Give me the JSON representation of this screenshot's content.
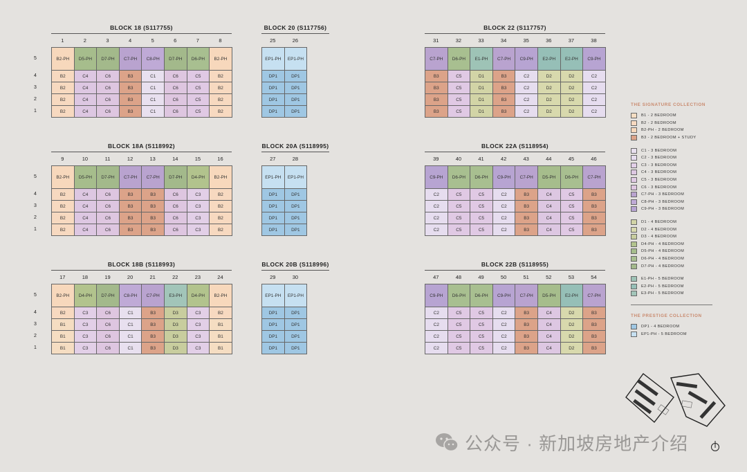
{
  "colors": {
    "B1": "#f5ddc2",
    "B2": "#f7d9c0",
    "B2-PH": "#f7d8bc",
    "B3": "#dca389",
    "C1": "#e8e0ef",
    "C2": "#e6ddef",
    "C3": "#e2cfe7",
    "C4": "#ddc7e2",
    "C5": "#e0c9e4",
    "C6": "#dec6e0",
    "C7-PH": "#b9a3cf",
    "C8-PH": "#bfaad6",
    "C9-PH": "#b7a4d2",
    "D1": "#d2d4a6",
    "D2": "#d8d9ad",
    "D3": "#c8cd9e",
    "D4-PH": "#b2c38d",
    "D5-PH": "#a6bd8c",
    "D6-PH": "#a8bf90",
    "D7-PH": "#a3b98b",
    "E1-PH": "#9ec3b6",
    "E2-PH": "#96bfb7",
    "E3-PH": "#a2c5b9",
    "DP1": "#9fc7e3",
    "EP1-PH": "#c6e0f1"
  },
  "blocks": [
    {
      "id": "b18",
      "title": "BLOCK 18 (S117755)",
      "stacks": [
        "1",
        "2",
        "3",
        "4",
        "5",
        "6",
        "7",
        "8"
      ],
      "rows": [
        {
          "floor": "5",
          "units": [
            "B2-PH",
            "D5-PH",
            "D7-PH",
            "C7-PH",
            "C8-PH",
            "D7-PH",
            "D6-PH",
            "B2-PH"
          ]
        },
        {
          "floor": "4",
          "units": [
            "B2",
            "C4",
            "C6",
            "B3",
            "C1",
            "C6",
            "C5",
            "B2"
          ]
        },
        {
          "floor": "3",
          "units": [
            "B2",
            "C4",
            "C6",
            "B3",
            "C1",
            "C6",
            "C5",
            "B2"
          ]
        },
        {
          "floor": "2",
          "units": [
            "B2",
            "C4",
            "C6",
            "B3",
            "C1",
            "C6",
            "C5",
            "B2"
          ]
        },
        {
          "floor": "1",
          "units": [
            "B2",
            "C4",
            "C6",
            "B3",
            "C1",
            "C6",
            "C5",
            "B2"
          ]
        }
      ]
    },
    {
      "id": "b20",
      "title": "BLOCK 20 (S117756)",
      "stacks": [
        "25",
        "26"
      ],
      "rows": [
        {
          "floor": "",
          "units": [
            "EP1-PH",
            "EP1-PH"
          ]
        },
        {
          "floor": "",
          "units": [
            "DP1",
            "DP1"
          ]
        },
        {
          "floor": "",
          "units": [
            "DP1",
            "DP1"
          ]
        },
        {
          "floor": "",
          "units": [
            "DP1",
            "DP1"
          ]
        },
        {
          "floor": "",
          "units": [
            "DP1",
            "DP1"
          ]
        }
      ]
    },
    {
      "id": "b22",
      "title": "BLOCK 22 (S117757)",
      "stacks": [
        "31",
        "32",
        "33",
        "34",
        "35",
        "36",
        "37",
        "38"
      ],
      "rows": [
        {
          "floor": "",
          "units": [
            "C7-PH",
            "D6-PH",
            "E1-PH",
            "C7-PH",
            "C9-PH",
            "E2-PH",
            "E2-PH",
            "C9-PH"
          ]
        },
        {
          "floor": "",
          "units": [
            "B3",
            "C5",
            "D1",
            "B3",
            "C2",
            "D2",
            "D2",
            "C2"
          ]
        },
        {
          "floor": "",
          "units": [
            "B3",
            "C5",
            "D1",
            "B3",
            "C2",
            "D2",
            "D2",
            "C2"
          ]
        },
        {
          "floor": "",
          "units": [
            "B3",
            "C5",
            "D1",
            "B3",
            "C2",
            "D2",
            "D2",
            "C2"
          ]
        },
        {
          "floor": "",
          "units": [
            "B3",
            "C5",
            "D1",
            "B3",
            "C2",
            "D2",
            "D2",
            "C2"
          ]
        }
      ]
    },
    {
      "id": "b18a",
      "title": "BLOCK 18A (S118992)",
      "stacks": [
        "9",
        "10",
        "11",
        "12",
        "13",
        "14",
        "15",
        "16"
      ],
      "rows": [
        {
          "floor": "5",
          "units": [
            "B2-PH",
            "D5-PH",
            "D7-PH",
            "C7-PH",
            "C7-PH",
            "D7-PH",
            "D4-PH",
            "B2-PH"
          ]
        },
        {
          "floor": "4",
          "units": [
            "B2",
            "C4",
            "C6",
            "B3",
            "B3",
            "C6",
            "C3",
            "B2"
          ]
        },
        {
          "floor": "3",
          "units": [
            "B2",
            "C4",
            "C6",
            "B3",
            "B3",
            "C6",
            "C3",
            "B2"
          ]
        },
        {
          "floor": "2",
          "units": [
            "B2",
            "C4",
            "C6",
            "B3",
            "B3",
            "C6",
            "C3",
            "B2"
          ]
        },
        {
          "floor": "1",
          "units": [
            "B2",
            "C4",
            "C6",
            "B3",
            "B3",
            "C6",
            "C3",
            "B2"
          ]
        }
      ]
    },
    {
      "id": "b20a",
      "title": "BLOCK 20A (S118995)",
      "stacks": [
        "27",
        "28"
      ],
      "rows": [
        {
          "floor": "",
          "units": [
            "EP1-PH",
            "EP1-PH"
          ]
        },
        {
          "floor": "",
          "units": [
            "DP1",
            "DP1"
          ]
        },
        {
          "floor": "",
          "units": [
            "DP1",
            "DP1"
          ]
        },
        {
          "floor": "",
          "units": [
            "DP1",
            "DP1"
          ]
        },
        {
          "floor": "",
          "units": [
            "DP1",
            "DP1"
          ]
        }
      ]
    },
    {
      "id": "b22a",
      "title": "BLOCK 22A (S118954)",
      "stacks": [
        "39",
        "40",
        "41",
        "42",
        "43",
        "44",
        "45",
        "46"
      ],
      "rows": [
        {
          "floor": "",
          "units": [
            "C9-PH",
            "D6-PH",
            "D6-PH",
            "C9-PH",
            "C7-PH",
            "D5-PH",
            "D6-PH",
            "C7-PH"
          ]
        },
        {
          "floor": "",
          "units": [
            "C2",
            "C5",
            "C5",
            "C2",
            "B3",
            "C4",
            "C5",
            "B3"
          ]
        },
        {
          "floor": "",
          "units": [
            "C2",
            "C5",
            "C5",
            "C2",
            "B3",
            "C4",
            "C5",
            "B3"
          ]
        },
        {
          "floor": "",
          "units": [
            "C2",
            "C5",
            "C5",
            "C2",
            "B3",
            "C4",
            "C5",
            "B3"
          ]
        },
        {
          "floor": "",
          "units": [
            "C2",
            "C5",
            "C5",
            "C2",
            "B3",
            "C4",
            "C5",
            "B3"
          ]
        }
      ]
    },
    {
      "id": "b18b",
      "title": "BLOCK 18B (S118993)",
      "stacks": [
        "17",
        "18",
        "19",
        "20",
        "21",
        "22",
        "23",
        "24"
      ],
      "rows": [
        {
          "floor": "5",
          "units": [
            "B2-PH",
            "D4-PH",
            "D7-PH",
            "C8-PH",
            "C7-PH",
            "E3-PH",
            "D4-PH",
            "B2-PH"
          ]
        },
        {
          "floor": "4",
          "units": [
            "B2",
            "C3",
            "C6",
            "C1",
            "B3",
            "D3",
            "C3",
            "B2"
          ]
        },
        {
          "floor": "3",
          "units": [
            "B1",
            "C3",
            "C6",
            "C1",
            "B3",
            "D3",
            "C3",
            "B1"
          ]
        },
        {
          "floor": "2",
          "units": [
            "B1",
            "C3",
            "C6",
            "C1",
            "B3",
            "D3",
            "C3",
            "B1"
          ]
        },
        {
          "floor": "1",
          "units": [
            "B1",
            "C3",
            "C6",
            "C1",
            "B3",
            "D3",
            "C3",
            "B1"
          ]
        }
      ]
    },
    {
      "id": "b20b",
      "title": "BLOCK 20B (S118996)",
      "stacks": [
        "29",
        "30"
      ],
      "rows": [
        {
          "floor": "",
          "units": [
            "EP1-PH",
            "EP1-PH"
          ]
        },
        {
          "floor": "",
          "units": [
            "DP1",
            "DP1"
          ]
        },
        {
          "floor": "",
          "units": [
            "DP1",
            "DP1"
          ]
        },
        {
          "floor": "",
          "units": [
            "DP1",
            "DP1"
          ]
        },
        {
          "floor": "",
          "units": [
            "DP1",
            "DP1"
          ]
        }
      ]
    },
    {
      "id": "b22b",
      "title": "BLOCK 22B (S118955)",
      "stacks": [
        "47",
        "48",
        "49",
        "50",
        "51",
        "52",
        "53",
        "54"
      ],
      "rows": [
        {
          "floor": "",
          "units": [
            "C9-PH",
            "D6-PH",
            "D6-PH",
            "C9-PH",
            "C7-PH",
            "D5-PH",
            "E2-PH",
            "C7-PH"
          ]
        },
        {
          "floor": "",
          "units": [
            "C2",
            "C5",
            "C5",
            "C2",
            "B3",
            "C4",
            "D2",
            "B3"
          ]
        },
        {
          "floor": "",
          "units": [
            "C2",
            "C5",
            "C5",
            "C2",
            "B3",
            "C4",
            "D2",
            "B3"
          ]
        },
        {
          "floor": "",
          "units": [
            "C2",
            "C5",
            "C5",
            "C2",
            "B3",
            "C4",
            "D2",
            "B3"
          ]
        },
        {
          "floor": "",
          "units": [
            "C2",
            "C5",
            "C5",
            "C2",
            "B3",
            "C4",
            "D2",
            "B3"
          ]
        }
      ]
    }
  ],
  "legend": {
    "signature_heading": "THE SIGNATURE COLLECTION",
    "signature_groups": [
      [
        {
          "code": "B1",
          "label": "B1 - 2 BEDROOM"
        },
        {
          "code": "B2",
          "label": "B2 - 2 BEDROOM"
        },
        {
          "code": "B2-PH",
          "label": "B2-PH - 2 BEDROOM"
        },
        {
          "code": "B3",
          "label": "B3 - 2 BEDROOM + STUDY"
        }
      ],
      [
        {
          "code": "C1",
          "label": "C1 - 3 BEDROOM"
        },
        {
          "code": "C2",
          "label": "C2 - 3 BEDROOM"
        },
        {
          "code": "C3",
          "label": "C3 - 3 BEDROOM"
        },
        {
          "code": "C4",
          "label": "C4 - 3 BEDROOM"
        },
        {
          "code": "C5",
          "label": "C5 - 3 BEDROOM"
        },
        {
          "code": "C6",
          "label": "C6 - 3 BEDROOM"
        },
        {
          "code": "C7-PH",
          "label": "C7-PH - 3 BEDROOM"
        },
        {
          "code": "C8-PH",
          "label": "C8-PH - 3 BEDROOM"
        },
        {
          "code": "C9-PH",
          "label": "C9-PH - 3 BEDROOM"
        }
      ],
      [
        {
          "code": "D1",
          "label": "D1 - 4 BEDROOM"
        },
        {
          "code": "D2",
          "label": "D2 - 4 BEDROOM"
        },
        {
          "code": "D3",
          "label": "D3 - 4 BEDROOM"
        },
        {
          "code": "D4-PH",
          "label": "D4-PH - 4 BEDROOM"
        },
        {
          "code": "D5-PH",
          "label": "D5-PH - 4 BEDROOM"
        },
        {
          "code": "D6-PH",
          "label": "D6-PH - 4 BEDROOM"
        },
        {
          "code": "D7-PH",
          "label": "D7-PH - 4 BEDROOM"
        }
      ],
      [
        {
          "code": "E1-PH",
          "label": "E1-PH - 5 BEDROOM"
        },
        {
          "code": "E2-PH",
          "label": "E2-PH - 5 BEDROOM"
        },
        {
          "code": "E3-PH",
          "label": "E3-PH - 5 BEDROOM"
        }
      ]
    ],
    "prestige_heading": "THE PRESTIGE COLLECTION",
    "prestige_items": [
      {
        "code": "DP1",
        "label": "DP1 - 4 BEDROOM"
      },
      {
        "code": "EP1-PH",
        "label": "EP1-PH - 5 BEDROOM"
      }
    ]
  },
  "watermark": {
    "text": "公众号 · 新加坡房地产介绍",
    "icon": "wechat-icon"
  },
  "siteplan": {
    "icon": "site-plan-icon",
    "compass_icon": "north-compass-icon"
  }
}
